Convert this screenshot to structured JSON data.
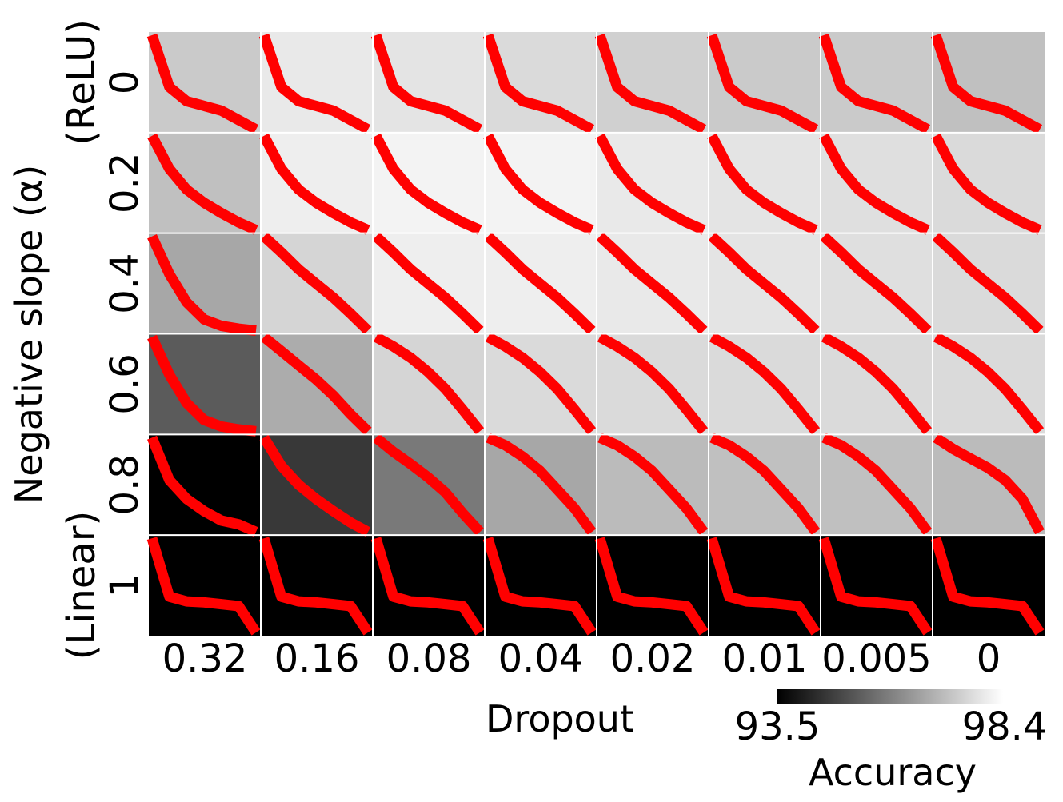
{
  "chart_data": {
    "type": "heatmap",
    "xlabel": "Dropout",
    "ylabel": "Negative slope (α)",
    "x_ticks": [
      "0.32",
      "0.16",
      "0.08",
      "0.04",
      "0.02",
      "0.01",
      "0.005",
      "0"
    ],
    "y_ticks": [
      {
        "value": "0",
        "note": "(ReLU)"
      },
      {
        "value": "0.2",
        "note": ""
      },
      {
        "value": "0.4",
        "note": ""
      },
      {
        "value": "0.6",
        "note": ""
      },
      {
        "value": "0.8",
        "note": ""
      },
      {
        "value": "1",
        "note": "(Linear)"
      }
    ],
    "colorbar": {
      "label": "Accuracy",
      "min": 93.5,
      "max": 98.4,
      "min_label": "93.5",
      "max_label": "98.4",
      "colormap": "gray"
    },
    "line_color": "#ff0000",
    "accuracy": [
      [
        97.5,
        98.1,
        98.0,
        97.8,
        97.6,
        97.5,
        97.5,
        97.3
      ],
      [
        97.3,
        98.2,
        98.3,
        98.3,
        98.1,
        98.0,
        97.9,
        97.8
      ],
      [
        96.8,
        97.7,
        98.2,
        98.2,
        98.1,
        98.0,
        97.9,
        97.8
      ],
      [
        95.3,
        96.9,
        97.7,
        97.8,
        97.8,
        97.8,
        97.8,
        97.8
      ],
      [
        93.5,
        94.6,
        95.9,
        96.8,
        97.2,
        97.3,
        97.3,
        97.2
      ],
      [
        93.5,
        93.5,
        93.5,
        93.5,
        93.5,
        93.5,
        93.5,
        93.5
      ]
    ],
    "curves_by_row": [
      [
        1.0,
        0.45,
        0.3,
        0.25,
        0.2,
        0.1,
        0.0
      ],
      [
        1.0,
        0.65,
        0.43,
        0.29,
        0.18,
        0.08,
        0.0
      ],
      [
        1.0,
        0.83,
        0.65,
        0.5,
        0.35,
        0.18,
        0.0
      ],
      [
        1.0,
        0.9,
        0.78,
        0.63,
        0.45,
        0.23,
        0.0
      ],
      [
        1.0,
        0.92,
        0.8,
        0.65,
        0.45,
        0.25,
        0.0
      ],
      [
        1.0,
        0.38,
        0.33,
        0.32,
        0.3,
        0.28,
        0.0
      ]
    ],
    "curve_overrides": {
      "2": {
        "0": [
          1.0,
          0.6,
          0.3,
          0.12,
          0.05,
          0.02,
          0.0
        ]
      },
      "3": {
        "0": [
          1.0,
          0.6,
          0.3,
          0.12,
          0.05,
          0.02,
          0.0
        ],
        "1": [
          1.0,
          0.85,
          0.7,
          0.55,
          0.38,
          0.18,
          0.0
        ]
      },
      "4": {
        "0": [
          1.0,
          0.55,
          0.35,
          0.22,
          0.12,
          0.08,
          0.0
        ],
        "1": [
          1.0,
          0.7,
          0.5,
          0.35,
          0.22,
          0.1,
          0.0
        ],
        "2": [
          1.0,
          0.85,
          0.72,
          0.58,
          0.42,
          0.2,
          0.0
        ],
        "7": [
          1.0,
          0.88,
          0.78,
          0.68,
          0.55,
          0.35,
          0.0
        ]
      }
    }
  }
}
